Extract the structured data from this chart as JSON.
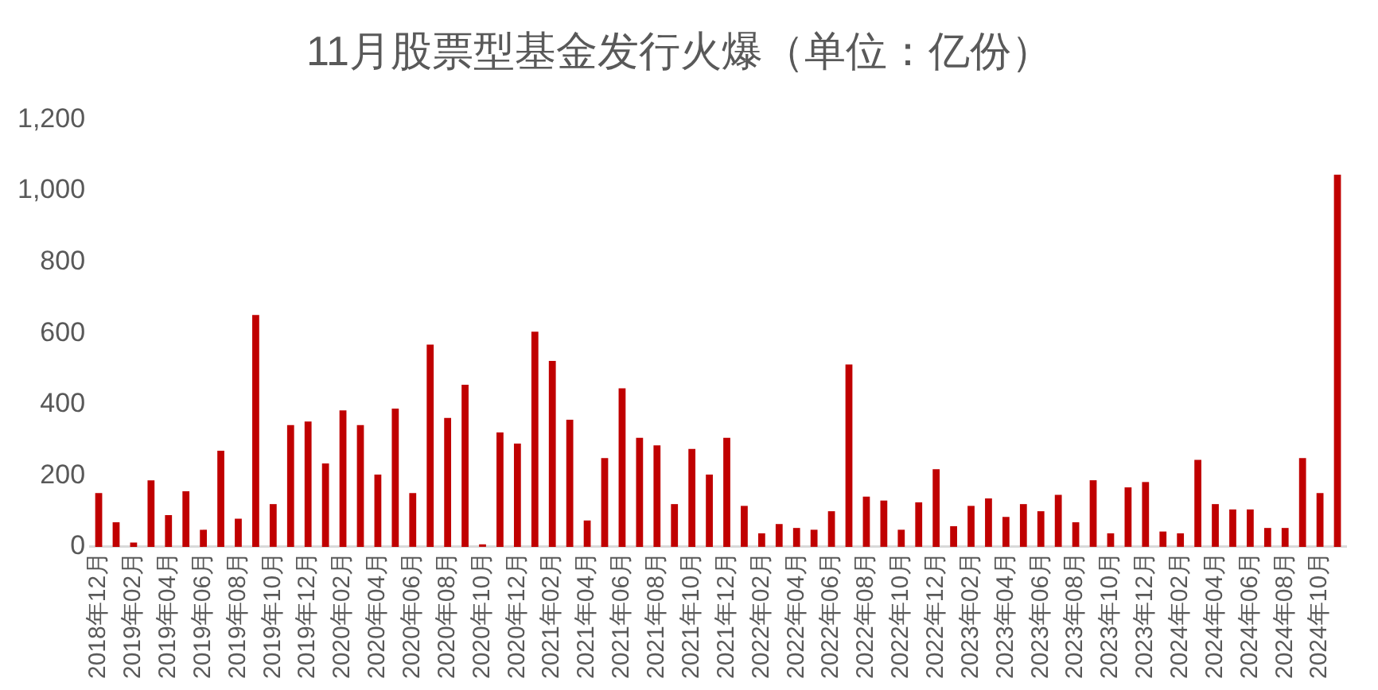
{
  "chart_data": {
    "type": "bar",
    "title": "11月股票型基金发行火爆（单位：亿份）",
    "categories": [
      "2018年12月",
      null,
      "2019年02月",
      null,
      "2019年04月",
      null,
      "2019年06月",
      null,
      "2019年08月",
      null,
      "2019年10月",
      null,
      "2019年12月",
      null,
      "2020年02月",
      null,
      "2020年04月",
      null,
      "2020年06月",
      null,
      "2020年08月",
      null,
      "2020年10月",
      null,
      "2020年12月",
      null,
      "2021年02月",
      null,
      "2021年04月",
      null,
      "2021年06月",
      null,
      "2021年08月",
      null,
      "2021年10月",
      null,
      "2021年12月",
      null,
      "2022年02月",
      null,
      "2022年04月",
      null,
      "2022年06月",
      null,
      "2022年08月",
      null,
      "2022年10月",
      null,
      "2022年12月",
      null,
      "2023年02月",
      null,
      "2023年04月",
      null,
      "2023年06月",
      null,
      "2023年08月",
      null,
      "2023年10月",
      null,
      "2023年12月",
      null,
      "2024年02月",
      null,
      "2024年04月",
      null,
      "2024年06月",
      null,
      "2024年08月",
      null,
      "2024年10月",
      null
    ],
    "values": [
      151,
      69,
      12,
      187,
      89,
      156,
      48,
      270,
      79,
      651,
      120,
      342,
      352,
      234,
      383,
      342,
      203,
      388,
      151,
      568,
      362,
      455,
      7,
      321,
      290,
      604,
      522,
      357,
      74,
      249,
      445,
      306,
      285,
      120,
      275,
      203,
      306,
      115,
      38,
      64,
      53,
      48,
      100,
      512,
      141,
      130,
      48,
      125,
      218,
      58,
      115,
      136,
      84,
      120,
      100,
      146,
      69,
      187,
      38,
      167,
      182,
      43,
      38,
      244,
      120,
      105,
      105,
      53,
      53,
      249,
      151,
      1045
    ],
    "color": "#c00000",
    "ylim": [
      0,
      1200
    ],
    "yticks": [
      0,
      {
        "value": 200,
        "label": "200"
      },
      {
        "value": 400,
        "label": "400"
      },
      {
        "value": 600,
        "label": "600"
      },
      {
        "value": 800,
        "label": "800"
      },
      {
        "value": 1000,
        "label": "1,000"
      },
      {
        "value": 1200,
        "label": "1,200"
      }
    ],
    "grid": false,
    "legend": false
  }
}
